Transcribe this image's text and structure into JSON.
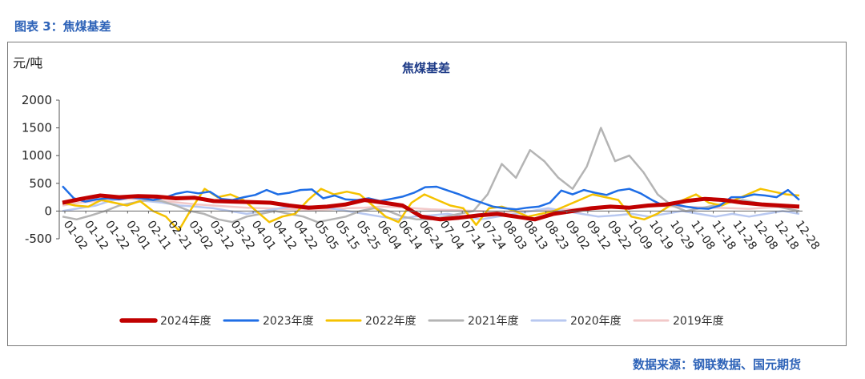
{
  "figure_label": "图表 3：焦煤基差",
  "source_note": "数据来源：钢联数据、国元期货",
  "chart_data": {
    "type": "line",
    "title": "焦煤基差",
    "ylabel": "元/吨",
    "ylim": [
      -500,
      2000
    ],
    "yticks": [
      -500,
      0,
      500,
      1000,
      1500,
      2000
    ],
    "xticks": [
      "01-02",
      "01-12",
      "01-22",
      "02-01",
      "02-11",
      "02-21",
      "03-02",
      "03-12",
      "03-22",
      "04-01",
      "04-12",
      "04-22",
      "05-05",
      "05-15",
      "05-25",
      "06-04",
      "06-14",
      "06-24",
      "07-04",
      "07-14",
      "07-24",
      "08-03",
      "08-13",
      "08-23",
      "09-02",
      "09-12",
      "09-22",
      "10-09",
      "10-19",
      "10-29",
      "11-08",
      "11-18",
      "11-28",
      "12-08",
      "12-18",
      "12-28"
    ],
    "grid": false,
    "legend_position": "bottom",
    "series": [
      {
        "name": "2024年度",
        "color": "#c00000",
        "width": 5,
        "values": [
          150,
          220,
          280,
          250,
          270,
          260,
          230,
          240,
          180,
          170,
          160,
          150,
          100,
          60,
          80,
          120,
          200,
          150,
          100,
          -100,
          -150,
          -120,
          -80,
          -50,
          -100,
          -150,
          -50,
          0,
          50,
          80,
          60,
          100,
          120,
          180,
          220,
          200,
          150,
          120,
          100,
          80
        ]
      },
      {
        "name": "2023年度",
        "color": "#1f6ee6",
        "width": 2.5,
        "values": [
          450,
          230,
          170,
          210,
          230,
          210,
          250,
          230,
          200,
          240,
          310,
          350,
          320,
          350,
          220,
          200,
          250,
          290,
          380,
          300,
          330,
          380,
          390,
          230,
          280,
          210,
          200,
          230,
          180,
          220,
          260,
          330,
          430,
          440,
          370,
          300,
          220,
          150,
          80,
          50,
          30,
          60,
          80,
          150,
          370,
          300,
          380,
          330,
          290,
          370,
          400,
          320,
          200,
          100,
          120,
          80,
          50,
          40,
          100,
          250,
          250,
          300,
          280,
          250,
          380,
          200
        ]
      },
      {
        "name": "2022年度",
        "color": "#f5c200",
        "width": 2.5,
        "values": [
          150,
          100,
          80,
          200,
          150,
          100,
          180,
          0,
          -100,
          -350,
          50,
          400,
          250,
          300,
          200,
          0,
          -200,
          -100,
          -50,
          200,
          400,
          300,
          350,
          300,
          100,
          -100,
          -200,
          150,
          300,
          200,
          100,
          50,
          -250,
          50,
          80,
          0,
          -100,
          -50,
          0,
          100,
          200,
          300,
          250,
          200,
          -100,
          -150,
          -50,
          100,
          200,
          300,
          150,
          100,
          200,
          300,
          400,
          350,
          300,
          280
        ]
      },
      {
        "name": "2021年度",
        "color": "#b4b4b4",
        "width": 2.5,
        "values": [
          -100,
          -150,
          -80,
          0,
          100,
          150,
          200,
          180,
          100,
          0,
          -50,
          -150,
          -200,
          -100,
          -50,
          0,
          -50,
          -100,
          -200,
          -150,
          -100,
          0,
          50,
          0,
          -100,
          -150,
          -150,
          -100,
          -50,
          0,
          300,
          850,
          600,
          1100,
          900,
          600,
          400,
          800,
          1500,
          900,
          1000,
          700,
          300,
          100,
          0,
          50,
          100,
          150,
          200,
          150,
          100,
          50,
          0
        ]
      },
      {
        "name": "2020年度",
        "color": "#b8c8f0",
        "width": 2.5,
        "values": [
          0,
          50,
          100,
          200,
          250,
          180,
          150,
          100,
          80,
          50,
          0,
          -50,
          0,
          50,
          100,
          80,
          50,
          0,
          -50,
          -100,
          -150,
          -100,
          -80,
          -50,
          -100,
          -150,
          -100,
          -50,
          0,
          50,
          0,
          -50,
          -100,
          -80,
          -50,
          -100,
          -50,
          0,
          -50,
          -100,
          -50,
          -100,
          -50,
          0,
          -50
        ]
      },
      {
        "name": "2019年度",
        "color": "#f2c8c8",
        "width": 2.5,
        "values": [
          100,
          150,
          180,
          200,
          220,
          200,
          180,
          150,
          120,
          100,
          80,
          60,
          50,
          40,
          30,
          20,
          30,
          50,
          60,
          80,
          70,
          50,
          30,
          20,
          10,
          0,
          -20,
          -10,
          0,
          20,
          30,
          40,
          50,
          60,
          80,
          100,
          90,
          80,
          70,
          60,
          50,
          40,
          60,
          80,
          100
        ]
      }
    ]
  }
}
